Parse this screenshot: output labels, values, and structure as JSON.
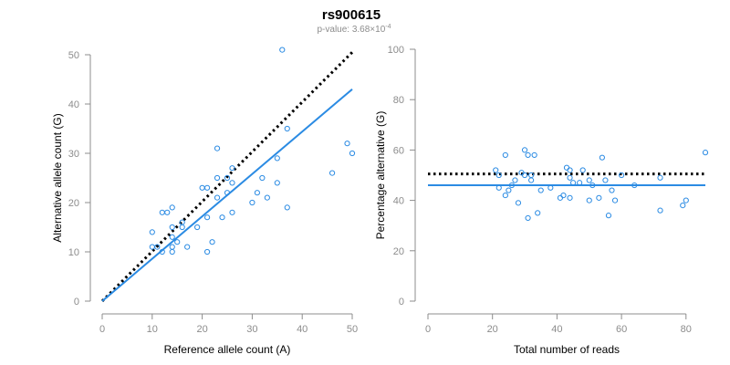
{
  "title": "rs900615",
  "subtitle": {
    "prefix": "p-value: 3.68×10",
    "exponent": "-4"
  },
  "colors": {
    "points": "#2b8be3",
    "fit_line": "#2b8be3",
    "reference_line": "#000000",
    "axis": "#8c8c8c"
  },
  "chart_data": [
    {
      "type": "scatter",
      "xlabel": "Reference allele count (A)",
      "ylabel": "Alternative allele count (G)",
      "xlim": [
        0,
        50
      ],
      "ylim": [
        0,
        50
      ],
      "xticks": [
        0,
        10,
        20,
        30,
        40,
        50
      ],
      "yticks": [
        0,
        10,
        20,
        30,
        40,
        50
      ],
      "points": [
        [
          10,
          14
        ],
        [
          10,
          11
        ],
        [
          11,
          11
        ],
        [
          12,
          10
        ],
        [
          12,
          18
        ],
        [
          13,
          18
        ],
        [
          14,
          10
        ],
        [
          14,
          11
        ],
        [
          14,
          13
        ],
        [
          14,
          15
        ],
        [
          14,
          19
        ],
        [
          15,
          12
        ],
        [
          16,
          15
        ],
        [
          16,
          16
        ],
        [
          17,
          11
        ],
        [
          19,
          15
        ],
        [
          20,
          23
        ],
        [
          21,
          23
        ],
        [
          21,
          10
        ],
        [
          21,
          17
        ],
        [
          22,
          12
        ],
        [
          23,
          31
        ],
        [
          23,
          21
        ],
        [
          23,
          25
        ],
        [
          24,
          17
        ],
        [
          25,
          22
        ],
        [
          25,
          25
        ],
        [
          26,
          18
        ],
        [
          26,
          24
        ],
        [
          26,
          27
        ],
        [
          30,
          20
        ],
        [
          31,
          22
        ],
        [
          32,
          25
        ],
        [
          33,
          21
        ],
        [
          35,
          24
        ],
        [
          35,
          29
        ],
        [
          36,
          51
        ],
        [
          37,
          35
        ],
        [
          37,
          19
        ],
        [
          46,
          26
        ],
        [
          49,
          32
        ],
        [
          50,
          30
        ]
      ],
      "reference_line": {
        "style": "dotted",
        "points": [
          [
            0,
            0
          ],
          [
            50,
            50.5
          ]
        ]
      },
      "fit_line": {
        "style": "solid",
        "points": [
          [
            0,
            0
          ],
          [
            50,
            43
          ]
        ]
      }
    },
    {
      "type": "scatter",
      "xlabel": "Total number of reads",
      "ylabel": "Percentage alternative (G)",
      "xlim": [
        0,
        86
      ],
      "ylim": [
        0,
        100
      ],
      "xticks": [
        0,
        20,
        40,
        60,
        80
      ],
      "yticks": [
        0,
        20,
        40,
        60,
        80,
        100
      ],
      "points": [
        [
          21,
          52
        ],
        [
          22,
          50
        ],
        [
          22,
          45
        ],
        [
          24,
          58
        ],
        [
          24,
          42
        ],
        [
          25,
          44
        ],
        [
          26,
          46
        ],
        [
          27,
          48
        ],
        [
          28,
          39
        ],
        [
          29,
          51
        ],
        [
          30,
          60
        ],
        [
          30,
          50
        ],
        [
          31,
          33
        ],
        [
          31,
          58
        ],
        [
          32,
          48
        ],
        [
          32,
          50
        ],
        [
          33,
          58
        ],
        [
          34,
          35
        ],
        [
          35,
          44
        ],
        [
          38,
          45
        ],
        [
          41,
          41
        ],
        [
          42,
          42
        ],
        [
          43,
          53
        ],
        [
          44,
          52
        ],
        [
          44,
          41
        ],
        [
          44,
          49
        ],
        [
          45,
          47
        ],
        [
          47,
          47
        ],
        [
          48,
          52
        ],
        [
          50,
          40
        ],
        [
          50,
          48
        ],
        [
          51,
          46
        ],
        [
          53,
          41
        ],
        [
          54,
          57
        ],
        [
          55,
          48
        ],
        [
          56,
          34
        ],
        [
          57,
          44
        ],
        [
          58,
          40
        ],
        [
          60,
          50
        ],
        [
          64,
          46
        ],
        [
          72,
          36
        ],
        [
          72,
          49
        ],
        [
          79,
          38
        ],
        [
          80,
          40
        ],
        [
          86,
          59
        ]
      ],
      "reference_line": {
        "style": "dotted",
        "y": 50.5
      },
      "fit_line": {
        "style": "solid",
        "y": 46
      }
    }
  ]
}
